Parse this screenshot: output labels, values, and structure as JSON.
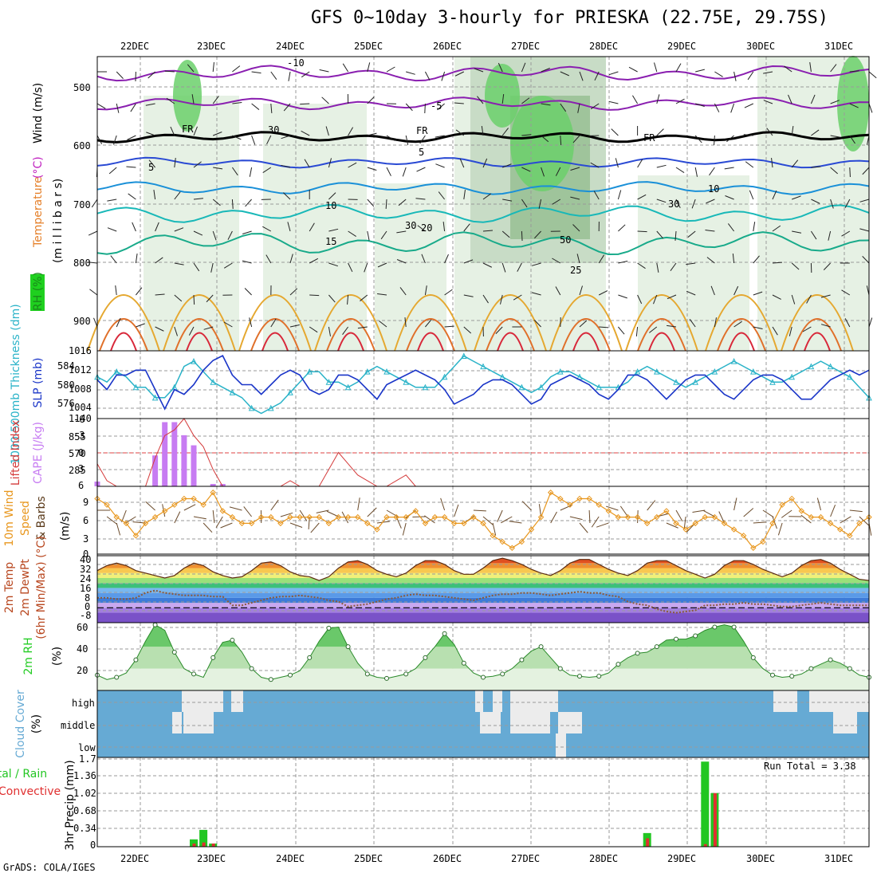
{
  "title": "GFS 0~10day 3-hourly for PRIESKA (22.75E, 29.75S)",
  "footer": "GrADS: COLA/IGES",
  "dates": [
    "22DEC",
    "23DEC",
    "24DEC",
    "25DEC",
    "26DEC",
    "27DEC",
    "28DEC",
    "29DEC",
    "30DEC",
    "31DEC"
  ],
  "colors": {
    "grid": "#9a9a9a",
    "rh_green": "#22cc22",
    "sky": "#66aad4",
    "slp": "#1a35c8",
    "thick": "#2ab3c8",
    "cape": "#c77cf2",
    "li": "#d43a3a",
    "wind_orange": "#e8961c",
    "dew": "#8a5a3a",
    "precip_green": "#22c622",
    "precip_red": "#e03030"
  },
  "panels": {
    "upper": {
      "name": "vertical-cross-section",
      "y_label_parts": [
        {
          "text": "RH (%)",
          "color": "#1a8a1a"
        },
        {
          "text": "Temperature",
          "color": "#e5802a"
        },
        {
          "text": " (°C)",
          "color": "#c020c0"
        },
        {
          "text": "Wind (m/s)",
          "color": "#000000"
        }
      ],
      "y_label2": "(m i l l i b a r s)",
      "yticks": [
        "500",
        "600",
        "700",
        "800",
        "900"
      ],
      "iso_labels": [
        "-10",
        "-5",
        "FR",
        "FR",
        "FR",
        "5",
        "5",
        "10",
        "15",
        "20",
        "25",
        "30",
        "30",
        "30",
        "10",
        "50"
      ]
    },
    "slp": {
      "left_label": "1000-500mb Thickness (dm)",
      "right_label": "SLP (mb)",
      "yticks_left": [
        "584",
        "580",
        "576"
      ],
      "yticks_right": [
        "1016",
        "1012",
        "1008",
        "1004"
      ]
    },
    "cape": {
      "left_label": "Lifted Index",
      "right_label": "CAPE (J/kg)",
      "yticks_left": [
        "-6",
        "-3",
        "0",
        "3",
        "6"
      ],
      "yticks_right": [
        "1140",
        "855",
        "570",
        "285"
      ]
    },
    "wind10": {
      "label1": "10m Wind",
      "label2": "Speed",
      "label3": "& Barbs",
      "unit": "(m/s)",
      "yticks": [
        "9",
        "6",
        "3",
        "0"
      ]
    },
    "temp2m": {
      "label1": "2m Temp",
      "label2": "2m DewPt",
      "label3": "(6hr Min/Max) (°C)",
      "yticks": [
        "40",
        "32",
        "24",
        "16",
        "8",
        "0",
        "-8"
      ]
    },
    "rh2m": {
      "label": "2m RH",
      "unit": "(%)",
      "yticks": [
        "60",
        "40",
        "20"
      ]
    },
    "cloud": {
      "label1": "Cloud Cover",
      "label2": "(%)",
      "yticks": [
        "high",
        "middle",
        "low"
      ]
    },
    "precip": {
      "label_a": "Total / Rain",
      "label_b": "Convective",
      "label_c": "3hr Precip (mm)",
      "yticks": [
        "1.7",
        "1.36",
        "1.02",
        "0.68",
        "0.34",
        "0"
      ],
      "run_total": "Run Total = 3.38"
    }
  },
  "chart_data": [
    {
      "type": "line",
      "name": "slp-thickness",
      "x_unit": "hours since first 3-hourly step",
      "series": [
        {
          "name": "SLP (mb)",
          "axis": "right",
          "ylim": [
            1002,
            1016
          ],
          "values": [
            1010,
            1008,
            1011,
            1011,
            1012,
            1012,
            1008,
            1004,
            1008,
            1007,
            1009,
            1012,
            1014,
            1015,
            1011,
            1009,
            1009,
            1007,
            1009,
            1011,
            1012,
            1011,
            1008,
            1007,
            1008,
            1011,
            1011,
            1010,
            1008,
            1006,
            1009,
            1010,
            1011,
            1012,
            1011,
            1010,
            1008,
            1005,
            1006,
            1007,
            1009,
            1010,
            1010,
            1009,
            1007,
            1005,
            1006,
            1009,
            1010,
            1011,
            1010,
            1009,
            1007,
            1006,
            1008,
            1011,
            1011,
            1010,
            1008,
            1006,
            1008,
            1010,
            1011,
            1011,
            1009,
            1007,
            1006,
            1008,
            1010,
            1011,
            1011,
            1010,
            1008,
            1006,
            1006,
            1008,
            1010,
            1011,
            1012,
            1011,
            1012
          ]
        },
        {
          "name": "1000-500mb Thickness (dm)",
          "axis": "left",
          "ylim": [
            574,
            587
          ],
          "values": [
            582,
            581,
            583,
            582,
            580,
            580,
            578,
            578,
            580,
            584,
            585,
            583,
            581,
            580,
            579,
            578,
            576,
            575,
            576,
            577,
            579,
            581,
            583,
            583,
            581,
            581,
            580,
            581,
            583,
            584,
            583,
            582,
            581,
            580,
            580,
            580,
            582,
            584,
            586,
            585,
            584,
            583,
            582,
            581,
            580,
            579,
            580,
            582,
            583,
            583,
            582,
            581,
            580,
            580,
            580,
            581,
            583,
            584,
            583,
            582,
            581,
            580,
            581,
            582,
            583,
            584,
            585,
            584,
            583,
            582,
            581,
            581,
            582,
            583,
            584,
            585,
            584,
            583,
            582,
            580,
            578
          ]
        }
      ]
    },
    {
      "type": "bar",
      "name": "cape-lifted-index",
      "cape_ylim": [
        0,
        1140
      ],
      "li_ylim": [
        6,
        -6
      ],
      "cape_values": [
        80,
        0,
        0,
        0,
        0,
        0,
        520,
        1080,
        1080,
        860,
        690,
        0,
        40,
        40,
        0,
        0,
        0,
        0,
        0,
        0,
        0,
        0,
        0,
        0,
        0,
        0,
        0,
        0,
        0,
        0,
        0,
        0,
        0,
        0,
        0,
        0,
        0,
        0,
        0,
        0,
        0,
        0,
        0,
        0,
        0,
        0,
        0,
        0,
        0,
        0,
        0,
        0,
        0,
        0,
        0,
        0,
        0,
        0,
        0,
        0,
        0,
        0,
        0,
        0,
        0,
        0,
        0,
        0,
        0,
        0,
        0,
        0,
        0,
        0,
        0,
        0,
        0,
        0,
        0,
        0,
        0
      ],
      "li_values": [
        2,
        5,
        6,
        6,
        6,
        6,
        1,
        -3,
        -4,
        -6,
        -3,
        -1,
        3,
        6,
        6,
        6,
        6,
        6,
        6,
        6,
        5,
        6,
        6,
        6,
        3,
        0,
        2,
        4,
        5,
        6,
        6,
        5,
        4,
        6,
        6,
        6,
        6,
        6,
        6,
        6,
        6,
        6,
        6,
        6,
        6,
        6,
        6,
        6,
        6,
        6,
        6,
        6,
        6,
        6,
        6,
        6,
        6,
        6,
        6,
        6,
        6,
        6,
        6,
        6,
        6,
        6,
        6,
        6,
        6,
        6,
        6,
        6,
        6,
        6,
        6,
        6,
        6,
        6,
        6,
        6,
        6
      ]
    },
    {
      "type": "line",
      "name": "wind-10m",
      "ylim": [
        0,
        11
      ],
      "values": [
        9,
        8,
        6,
        5,
        3,
        5,
        6,
        7,
        8,
        9,
        9,
        8,
        10,
        7,
        6,
        5,
        5,
        6,
        6,
        5,
        6,
        6,
        6,
        6,
        5,
        6,
        6,
        6,
        5,
        4,
        6,
        6,
        6,
        7,
        5,
        6,
        6,
        5,
        5,
        6,
        5,
        3,
        2,
        1,
        2,
        4,
        6,
        10,
        9,
        8,
        9,
        9,
        8,
        7,
        6,
        6,
        6,
        5,
        6,
        7,
        5,
        4,
        5,
        6,
        6,
        5,
        4,
        3,
        1,
        2,
        5,
        8,
        9,
        7,
        6,
        6,
        5,
        4,
        3,
        5,
        6
      ]
    },
    {
      "type": "area",
      "name": "temp-2m",
      "ylim": [
        -12,
        42
      ],
      "temp_values": [
        30,
        34,
        36,
        34,
        30,
        28,
        26,
        24,
        26,
        32,
        36,
        34,
        29,
        26,
        24,
        25,
        30,
        36,
        37,
        34,
        29,
        26,
        25,
        22,
        25,
        32,
        37,
        38,
        35,
        30,
        27,
        25,
        28,
        34,
        38,
        38,
        35,
        30,
        27,
        27,
        32,
        38,
        40,
        38,
        35,
        31,
        28,
        26,
        30,
        36,
        39,
        39,
        35,
        31,
        28,
        26,
        30,
        36,
        38,
        38,
        34,
        30,
        27,
        24,
        27,
        34,
        38,
        38,
        35,
        31,
        28,
        25,
        28,
        34,
        38,
        39,
        36,
        31,
        27,
        23,
        22
      ],
      "dew_values": [
        8,
        8,
        7,
        7,
        8,
        12,
        14,
        12,
        11,
        10,
        10,
        10,
        9,
        9,
        2,
        2,
        4,
        6,
        8,
        9,
        9,
        10,
        9,
        8,
        6,
        5,
        1,
        2,
        3,
        5,
        7,
        8,
        10,
        11,
        10,
        10,
        9,
        8,
        7,
        6,
        8,
        10,
        11,
        11,
        12,
        12,
        11,
        10,
        11,
        12,
        13,
        12,
        12,
        10,
        9,
        5,
        3,
        2,
        -1,
        -3,
        -4,
        -3,
        -2,
        2,
        2,
        3,
        3,
        4,
        3,
        3,
        2,
        1,
        1,
        2,
        3,
        4,
        3,
        2,
        2,
        2,
        2
      ]
    },
    {
      "type": "area",
      "name": "rh-2m",
      "ylim": [
        0,
        62
      ],
      "values": [
        14,
        10,
        12,
        16,
        28,
        45,
        60,
        55,
        35,
        20,
        15,
        12,
        30,
        44,
        46,
        35,
        20,
        12,
        10,
        12,
        14,
        18,
        30,
        45,
        57,
        58,
        40,
        25,
        15,
        12,
        11,
        13,
        15,
        20,
        30,
        40,
        52,
        42,
        25,
        16,
        12,
        13,
        15,
        20,
        28,
        36,
        40,
        30,
        20,
        14,
        13,
        12,
        13,
        16,
        24,
        30,
        34,
        35,
        40,
        46,
        47,
        47,
        50,
        55,
        58,
        60,
        58,
        45,
        30,
        20,
        14,
        12,
        13,
        15,
        20,
        24,
        28,
        25,
        20,
        14,
        12
      ]
    },
    {
      "type": "bar",
      "name": "precip-3hr",
      "ylim": [
        0,
        1.7
      ],
      "total": [
        0,
        0,
        0,
        0,
        0,
        0,
        0,
        0,
        0,
        0,
        0.14,
        0.32,
        0.06,
        0,
        0,
        0,
        0,
        0,
        0,
        0,
        0,
        0,
        0,
        0,
        0,
        0,
        0,
        0,
        0,
        0,
        0,
        0,
        0,
        0,
        0,
        0,
        0,
        0,
        0,
        0,
        0,
        0,
        0,
        0,
        0,
        0,
        0,
        0,
        0,
        0,
        0,
        0,
        0,
        0,
        0,
        0,
        0,
        0.26,
        0,
        0,
        0,
        0,
        0,
        1.62,
        1.02,
        0,
        0,
        0,
        0,
        0,
        0,
        0,
        0,
        0,
        0,
        0,
        0,
        0,
        0,
        0,
        0
      ],
      "convective": [
        0,
        0,
        0,
        0,
        0,
        0,
        0,
        0,
        0,
        0,
        0.06,
        0.08,
        0.06,
        0,
        0,
        0,
        0,
        0,
        0,
        0,
        0,
        0,
        0,
        0,
        0,
        0,
        0,
        0,
        0,
        0,
        0,
        0,
        0,
        0,
        0,
        0,
        0,
        0,
        0,
        0,
        0,
        0,
        0,
        0,
        0,
        0,
        0,
        0,
        0,
        0,
        0,
        0,
        0,
        0,
        0,
        0,
        0,
        0.16,
        0,
        0,
        0,
        0,
        0,
        0.05,
        1.02,
        0,
        0,
        0,
        0,
        0,
        0,
        0,
        0,
        0,
        0,
        0,
        0,
        0,
        0,
        0,
        0
      ]
    }
  ]
}
